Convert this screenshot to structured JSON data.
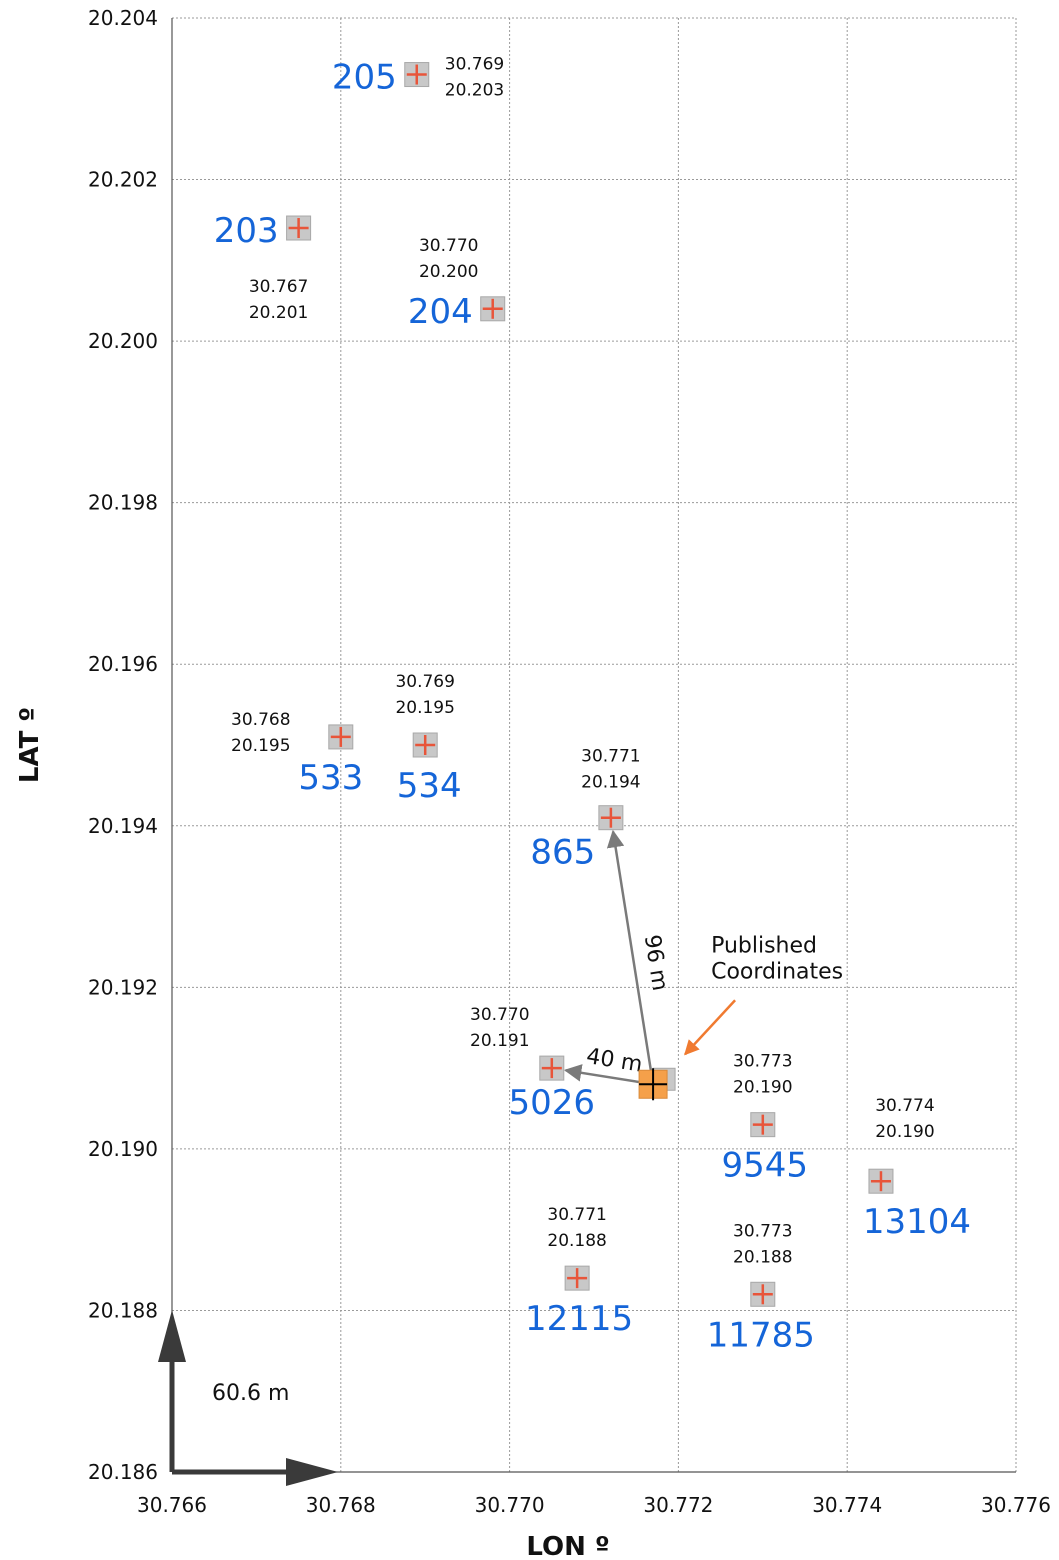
{
  "chart_data": {
    "type": "scatter",
    "xlabel": "LON º",
    "ylabel": "LAT º",
    "xlim": [
      30.766,
      30.776
    ],
    "ylim": [
      20.186,
      20.204
    ],
    "x_ticks": [
      "30.766",
      "30.768",
      "30.770",
      "30.772",
      "30.774",
      "30.776"
    ],
    "y_ticks": [
      "20.186",
      "20.188",
      "20.190",
      "20.192",
      "20.194",
      "20.196",
      "20.198",
      "20.200",
      "20.202",
      "20.204"
    ],
    "grid": true,
    "colors": {
      "label": "#1565d8",
      "marker_fill": "#c8c8c8",
      "marker_cross": "#e8553a",
      "published": "#f5a04a",
      "arrow": "#7a7a7a",
      "pointer": "#f07a30"
    },
    "points": [
      {
        "id": "205",
        "x": 30.7689,
        "y": 20.2033,
        "coord1": "30.769",
        "coord2": "20.203"
      },
      {
        "id": "203",
        "x": 30.7675,
        "y": 20.2014,
        "coord1": "30.767",
        "coord2": "20.201"
      },
      {
        "id": "204",
        "x": 30.7698,
        "y": 20.2004,
        "coord1": "30.770",
        "coord2": "20.200"
      },
      {
        "id": "533",
        "x": 30.768,
        "y": 20.1951,
        "coord1": "30.768",
        "coord2": "20.195"
      },
      {
        "id": "534",
        "x": 30.769,
        "y": 20.195,
        "coord1": "30.769",
        "coord2": "20.195"
      },
      {
        "id": "865",
        "x": 30.7712,
        "y": 20.1941,
        "coord1": "30.771",
        "coord2": "20.194"
      },
      {
        "id": "5026",
        "x": 30.7705,
        "y": 20.191,
        "coord1": "30.770",
        "coord2": "20.191"
      },
      {
        "id": "9545",
        "x": 30.773,
        "y": 20.1903,
        "coord1": "30.773",
        "coord2": "20.190"
      },
      {
        "id": "13104",
        "x": 30.7744,
        "y": 20.1896,
        "coord1": "30.774",
        "coord2": "20.190"
      },
      {
        "id": "12115",
        "x": 30.7708,
        "y": 20.1884,
        "coord1": "30.771",
        "coord2": "20.188"
      },
      {
        "id": "11785",
        "x": 30.773,
        "y": 20.1882,
        "coord1": "30.773",
        "coord2": "20.188"
      }
    ],
    "published": {
      "x": 30.7717,
      "y": 20.1908,
      "label_line1": "Published",
      "label_line2": "Coordinates"
    },
    "distances": [
      {
        "to": "865",
        "label": "96 m"
      },
      {
        "to": "5026",
        "label": "40 m"
      }
    ],
    "scale_label": "60.6 m"
  }
}
